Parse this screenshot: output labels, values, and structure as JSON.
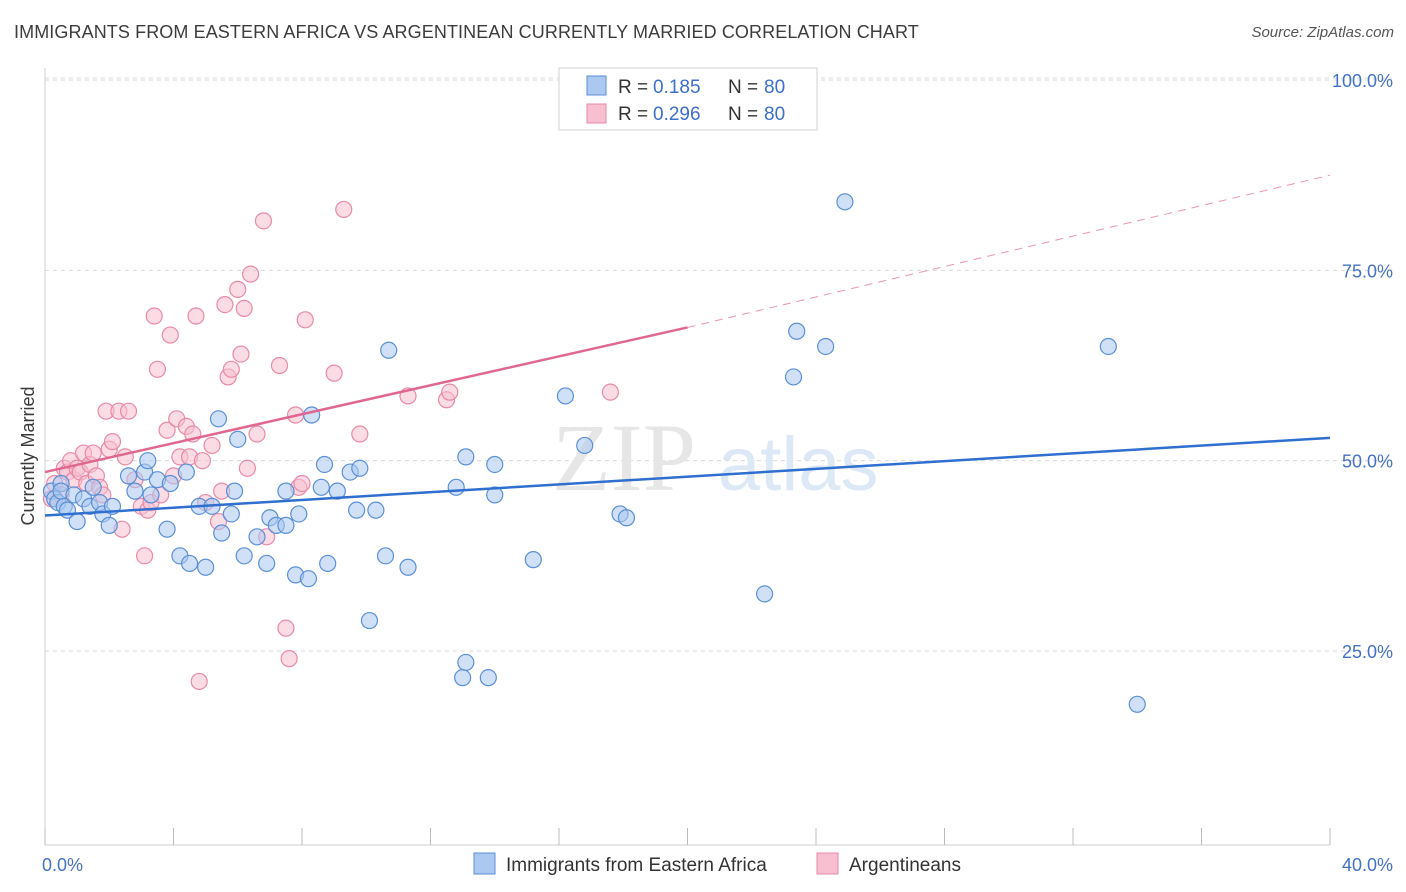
{
  "title": "IMMIGRANTS FROM EASTERN AFRICA VS ARGENTINEAN CURRENTLY MARRIED CORRELATION CHART",
  "source": "Source: ZipAtlas.com",
  "watermark": {
    "zip": "ZIP",
    "atlas": "atlas"
  },
  "colors": {
    "blue_fill": "#aac8f0",
    "blue_stroke": "#5b8fd6",
    "blue_line": "#2f6fd0",
    "pink_fill": "#f7bfd0",
    "pink_stroke": "#e88aa8",
    "pink_line": "#e06890",
    "tick_text": "#4472c4",
    "grid": "#d9d9d9"
  },
  "chart_data": {
    "type": "scatter",
    "ylabel": "Currently Married",
    "xlim": [
      0,
      40
    ],
    "ylim": [
      0,
      100
    ],
    "x_tick_labels": [
      {
        "value": 0,
        "label": "0.0%"
      },
      {
        "value": 40,
        "label": "40.0%"
      }
    ],
    "y_tick_labels": [
      {
        "value": 100,
        "label": "100.0%"
      },
      {
        "value": 75,
        "label": "75.0%"
      },
      {
        "value": 50,
        "label": "50.0%"
      },
      {
        "value": 25,
        "label": "25.0%"
      }
    ],
    "legend": [
      {
        "r_label": "R =",
        "r_value": "0.185",
        "n_label": "N =",
        "n_value": "80"
      },
      {
        "r_label": "R =",
        "r_value": "0.296",
        "n_label": "N =",
        "n_value": "80"
      }
    ],
    "series": [
      {
        "name": "Immigrants from Eastern Africa",
        "trend": {
          "x0": 0,
          "y0": 42.8,
          "x1": 40,
          "y1": 53.0
        },
        "points": [
          [
            0.2,
            46
          ],
          [
            0.3,
            45
          ],
          [
            0.4,
            44.5
          ],
          [
            0.5,
            47
          ],
          [
            0.5,
            46
          ],
          [
            0.6,
            44
          ],
          [
            0.7,
            43.5
          ],
          [
            0.9,
            45.5
          ],
          [
            1.0,
            42
          ],
          [
            1.2,
            45
          ],
          [
            1.4,
            44
          ],
          [
            1.5,
            46.5
          ],
          [
            1.7,
            44.5
          ],
          [
            1.8,
            43
          ],
          [
            2.0,
            41.5
          ],
          [
            2.1,
            44
          ],
          [
            2.6,
            48
          ],
          [
            2.8,
            46
          ],
          [
            3.1,
            48.5
          ],
          [
            3.2,
            50
          ],
          [
            3.3,
            45.5
          ],
          [
            3.5,
            47.5
          ],
          [
            3.8,
            41
          ],
          [
            3.9,
            47
          ],
          [
            4.2,
            37.5
          ],
          [
            4.4,
            48.5
          ],
          [
            4.5,
            36.5
          ],
          [
            4.8,
            44
          ],
          [
            5.0,
            36
          ],
          [
            5.2,
            44
          ],
          [
            5.4,
            55.5
          ],
          [
            5.5,
            40.5
          ],
          [
            5.8,
            43
          ],
          [
            5.9,
            46
          ],
          [
            6.0,
            52.8
          ],
          [
            6.2,
            37.5
          ],
          [
            6.6,
            40
          ],
          [
            6.9,
            36.5
          ],
          [
            7.0,
            42.5
          ],
          [
            7.2,
            41.5
          ],
          [
            7.5,
            41.5
          ],
          [
            7.5,
            46
          ],
          [
            7.8,
            35
          ],
          [
            7.9,
            43
          ],
          [
            8.2,
            34.5
          ],
          [
            8.3,
            56
          ],
          [
            8.6,
            46.5
          ],
          [
            8.7,
            49.5
          ],
          [
            8.8,
            36.5
          ],
          [
            9.1,
            46
          ],
          [
            9.5,
            48.5
          ],
          [
            9.7,
            43.5
          ],
          [
            9.8,
            49
          ],
          [
            10.1,
            29
          ],
          [
            10.3,
            43.5
          ],
          [
            10.6,
            37.5
          ],
          [
            10.7,
            64.5
          ],
          [
            11.3,
            36
          ],
          [
            12.8,
            46.5
          ],
          [
            13.0,
            21.5
          ],
          [
            13.1,
            23.5
          ],
          [
            13.1,
            50.5
          ],
          [
            13.8,
            21.5
          ],
          [
            14.0,
            45.5
          ],
          [
            14.0,
            49.5
          ],
          [
            15.2,
            37
          ],
          [
            16.2,
            58.5
          ],
          [
            16.8,
            52
          ],
          [
            17.9,
            43
          ],
          [
            18.1,
            42.5
          ],
          [
            22.4,
            32.5
          ],
          [
            23.3,
            61
          ],
          [
            23.4,
            67
          ],
          [
            24.3,
            65
          ],
          [
            24.9,
            84
          ],
          [
            33.1,
            65
          ],
          [
            34.0,
            18
          ]
        ]
      },
      {
        "name": "Argentineans",
        "trend": {
          "x0": 0,
          "y0": 48.5,
          "x1": 20,
          "y1": 67.5
        },
        "trend_dashed": {
          "x0": 20,
          "y0": 67.5,
          "x1": 40,
          "y1": 87.5
        },
        "points": [
          [
            0.2,
            45
          ],
          [
            0.3,
            47
          ],
          [
            0.5,
            45.5
          ],
          [
            0.6,
            49
          ],
          [
            0.7,
            48.5
          ],
          [
            0.8,
            50
          ],
          [
            0.9,
            47.5
          ],
          [
            1.0,
            49
          ],
          [
            1.1,
            48.5
          ],
          [
            1.2,
            51
          ],
          [
            1.3,
            47
          ],
          [
            1.4,
            49.5
          ],
          [
            1.5,
            51
          ],
          [
            1.6,
            48
          ],
          [
            1.7,
            46.5
          ],
          [
            1.8,
            45.5
          ],
          [
            1.9,
            56.5
          ],
          [
            2.0,
            51.5
          ],
          [
            2.1,
            52.5
          ],
          [
            2.3,
            56.5
          ],
          [
            2.4,
            41
          ],
          [
            2.5,
            50.5
          ],
          [
            2.6,
            56.5
          ],
          [
            2.8,
            47.5
          ],
          [
            3.0,
            44
          ],
          [
            3.1,
            37.5
          ],
          [
            3.2,
            43.5
          ],
          [
            3.3,
            44.5
          ],
          [
            3.4,
            69
          ],
          [
            3.5,
            62
          ],
          [
            3.6,
            45.5
          ],
          [
            3.8,
            54
          ],
          [
            3.9,
            66.5
          ],
          [
            4.0,
            48
          ],
          [
            4.1,
            55.5
          ],
          [
            4.2,
            50.5
          ],
          [
            4.4,
            54.5
          ],
          [
            4.5,
            50.5
          ],
          [
            4.6,
            53.5
          ],
          [
            4.7,
            69
          ],
          [
            4.8,
            21
          ],
          [
            4.9,
            50
          ],
          [
            5.0,
            44.5
          ],
          [
            5.2,
            52
          ],
          [
            5.4,
            42
          ],
          [
            5.5,
            46
          ],
          [
            5.6,
            70.5
          ],
          [
            5.7,
            61
          ],
          [
            5.8,
            62
          ],
          [
            6.0,
            72.5
          ],
          [
            6.1,
            64
          ],
          [
            6.2,
            70
          ],
          [
            6.3,
            49
          ],
          [
            6.4,
            74.5
          ],
          [
            6.6,
            53.5
          ],
          [
            6.8,
            81.5
          ],
          [
            6.9,
            40
          ],
          [
            7.3,
            62.5
          ],
          [
            7.5,
            28
          ],
          [
            7.6,
            24
          ],
          [
            7.8,
            56
          ],
          [
            7.9,
            46.5
          ],
          [
            8.0,
            47
          ],
          [
            8.1,
            68.5
          ],
          [
            9.0,
            61.5
          ],
          [
            9.3,
            83
          ],
          [
            9.8,
            53.5
          ],
          [
            11.3,
            58.5
          ],
          [
            12.5,
            58
          ],
          [
            12.6,
            59
          ],
          [
            17.6,
            59
          ]
        ]
      }
    ]
  }
}
